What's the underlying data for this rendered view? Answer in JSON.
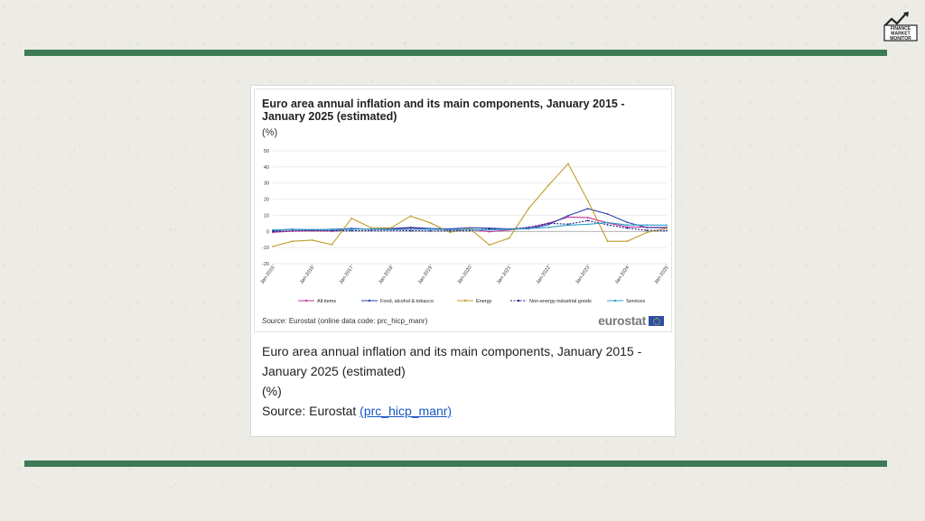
{
  "logo": {
    "text_lines": [
      "FINANCE",
      "MARKET",
      "MONITOR"
    ],
    "icon": "chart-arrow-logo"
  },
  "colors": {
    "rule": "#3c7b55",
    "background": "#ecebe6"
  },
  "chart_title": "Euro area annual inflation and its main components, January 2015 - January 2025 (estimated)",
  "chart_unit": "(%)",
  "source_small": {
    "label": "Source:",
    "text": "Eurostat (online data code: prc_hicp_manr)"
  },
  "eurostat_logo": "eurostat",
  "caption": {
    "title": "Euro area annual inflation and its main components, January 2015 - January 2025 (estimated)",
    "unit": "(%)",
    "source_prefix": "Source: Eurostat ",
    "source_link": "(prc_hicp_manr)"
  },
  "chart_data": {
    "type": "line",
    "title": "Euro area annual inflation and its main components, January 2015 - January 2025 (estimated)",
    "ylabel": "(%)",
    "ylim": [
      -20,
      50
    ],
    "yticks": [
      -20,
      -10,
      0,
      10,
      20,
      30,
      40,
      50
    ],
    "grid": true,
    "legend_position": "bottom",
    "x": [
      "Jan-2015",
      "Jul-2015",
      "Jan-2016",
      "Jul-2016",
      "Jan-2017",
      "Jul-2017",
      "Jan-2018",
      "Jul-2018",
      "Jan-2019",
      "Jul-2019",
      "Jan-2020",
      "Jul-2020",
      "Jan-2021",
      "Jul-2021",
      "Jan-2022",
      "Jul-2022",
      "Jan-2023",
      "Jul-2023",
      "Jan-2024",
      "Jul-2024",
      "Jan-2025"
    ],
    "xticks": [
      "Jan-2015",
      "Jan-2016",
      "Jan-2017",
      "Jan-2018",
      "Jan-2019",
      "Jan-2020",
      "Jan-2021",
      "Jan-2022",
      "Jan-2023",
      "Jan-2024",
      "Jan-2025"
    ],
    "series": [
      {
        "name": "All-items",
        "color": "#c2379b",
        "values": [
          -0.6,
          0.2,
          0.3,
          0.2,
          1.8,
          1.3,
          1.3,
          2.1,
          1.4,
          1.0,
          1.4,
          -0.2,
          0.9,
          2.2,
          5.1,
          8.9,
          8.6,
          5.3,
          2.8,
          2.6,
          2.5
        ]
      },
      {
        "name": "Food, alcohol & tobacco",
        "color": "#2b3fae",
        "values": [
          0.5,
          1.4,
          0.8,
          1.3,
          1.8,
          1.4,
          1.8,
          2.5,
          1.8,
          1.6,
          2.3,
          2.0,
          1.5,
          1.6,
          4.2,
          9.8,
          14.1,
          10.8,
          5.6,
          2.4,
          2.3
        ]
      },
      {
        "name": "Energy",
        "color": "#c39b2a",
        "values": [
          -9.3,
          -6.1,
          -5.4,
          -8.2,
          8.1,
          2.2,
          2.2,
          9.5,
          5.3,
          -0.6,
          1.9,
          -8.4,
          -4.2,
          14.3,
          28.6,
          42.0,
          18.9,
          -6.1,
          -6.1,
          -0.6,
          1.9
        ]
      },
      {
        "name": "Non-energy industrial goods",
        "color": "#1f1f8a",
        "dashed": true,
        "values": [
          -0.1,
          0.4,
          0.7,
          0.4,
          0.5,
          0.5,
          0.7,
          0.4,
          0.3,
          0.3,
          0.5,
          1.6,
          1.5,
          2.6,
          5.0,
          4.5,
          6.7,
          4.1,
          2.0,
          0.7,
          0.5
        ]
      },
      {
        "name": "Services",
        "color": "#2aa1c8",
        "values": [
          1.0,
          1.2,
          1.2,
          1.1,
          1.3,
          1.6,
          1.2,
          1.3,
          1.3,
          1.1,
          1.2,
          0.9,
          1.4,
          1.8,
          2.5,
          3.9,
          4.4,
          5.5,
          4.0,
          4.0,
          3.9
        ]
      }
    ]
  }
}
